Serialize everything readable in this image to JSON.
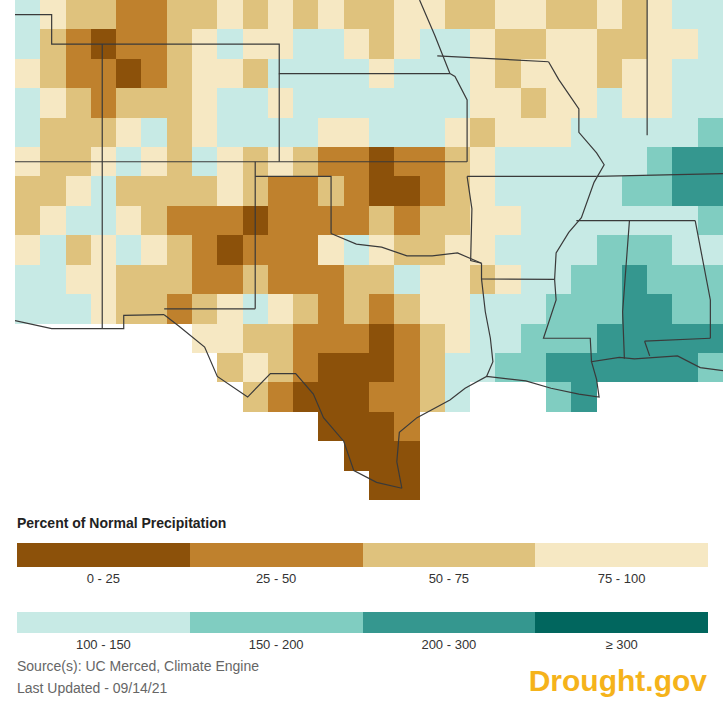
{
  "chart_data": {
    "type": "heatmap",
    "tick_labels": false,
    "xlim": [
      -112.5,
      -84.5
    ],
    "ylim": [
      25.5,
      42.5
    ],
    "x": [
      -112,
      -111,
      -110,
      -109,
      -108,
      -107,
      -106,
      -105,
      -104,
      -103,
      -102,
      -101,
      -100,
      -99,
      -98,
      -97,
      -96,
      -95,
      -94,
      -93,
      -92,
      -91,
      -90,
      -89,
      -88,
      -87,
      -86,
      -85
    ],
    "y": [
      26,
      27,
      28,
      29,
      30,
      31,
      32,
      33,
      34,
      35,
      36,
      37,
      38,
      39,
      40,
      41,
      42
    ],
    "cells": [
      [
        null,
        null,
        null,
        null,
        null,
        null,
        null,
        null,
        null,
        null,
        null,
        null,
        null,
        null,
        15,
        10,
        null,
        null,
        null,
        null,
        null,
        null,
        null,
        null,
        null,
        null,
        null,
        null
      ],
      [
        null,
        null,
        null,
        null,
        null,
        null,
        null,
        null,
        null,
        null,
        null,
        null,
        null,
        15,
        10,
        20,
        null,
        null,
        null,
        null,
        null,
        null,
        null,
        null,
        null,
        null,
        null,
        null
      ],
      [
        null,
        null,
        null,
        null,
        null,
        null,
        null,
        null,
        null,
        null,
        null,
        null,
        20,
        15,
        10,
        40,
        null,
        null,
        null,
        null,
        null,
        null,
        null,
        null,
        null,
        null,
        null,
        null
      ],
      [
        null,
        null,
        null,
        null,
        null,
        null,
        null,
        null,
        null,
        60,
        40,
        20,
        15,
        15,
        25,
        40,
        60,
        130,
        null,
        null,
        null,
        170,
        220,
        null,
        null,
        null,
        null,
        null
      ],
      [
        null,
        null,
        null,
        null,
        null,
        null,
        null,
        null,
        70,
        80,
        50,
        30,
        20,
        15,
        20,
        30,
        60,
        110,
        130,
        150,
        170,
        200,
        220,
        200,
        230,
        250,
        220,
        180
      ],
      [
        null,
        null,
        null,
        null,
        null,
        null,
        null,
        80,
        90,
        60,
        70,
        40,
        40,
        30,
        20,
        30,
        60,
        90,
        110,
        130,
        150,
        180,
        170,
        200,
        220,
        240,
        220,
        200
      ],
      [
        120,
        110,
        130,
        90,
        70,
        60,
        40,
        60,
        80,
        110,
        90,
        60,
        40,
        50,
        40,
        50,
        80,
        90,
        100,
        110,
        120,
        150,
        170,
        180,
        200,
        230,
        180,
        150
      ],
      [
        110,
        120,
        90,
        80,
        60,
        70,
        50,
        40,
        40,
        50,
        30,
        40,
        30,
        60,
        70,
        110,
        90,
        80,
        70,
        90,
        110,
        130,
        160,
        180,
        200,
        170,
        160,
        150
      ],
      [
        80,
        110,
        70,
        90,
        120,
        80,
        60,
        30,
        20,
        30,
        40,
        40,
        80,
        110,
        90,
        70,
        60,
        80,
        90,
        100,
        110,
        120,
        140,
        150,
        170,
        160,
        140,
        130
      ],
      [
        60,
        90,
        100,
        110,
        80,
        60,
        40,
        30,
        40,
        20,
        30,
        40,
        30,
        40,
        50,
        40,
        60,
        70,
        80,
        90,
        100,
        110,
        120,
        110,
        140,
        120,
        130,
        170
      ],
      [
        70,
        50,
        80,
        100,
        60,
        50,
        70,
        60,
        80,
        50,
        30,
        40,
        50,
        40,
        20,
        20,
        30,
        50,
        80,
        100,
        110,
        120,
        110,
        130,
        150,
        170,
        200,
        230
      ],
      [
        90,
        60,
        70,
        90,
        110,
        80,
        60,
        100,
        80,
        60,
        80,
        60,
        40,
        30,
        20,
        30,
        40,
        60,
        90,
        100,
        120,
        110,
        100,
        120,
        130,
        180,
        220,
        200
      ],
      [
        110,
        70,
        50,
        60,
        80,
        100,
        70,
        90,
        110,
        100,
        120,
        110,
        90,
        80,
        110,
        120,
        100,
        80,
        70,
        80,
        90,
        80,
        100,
        110,
        120,
        100,
        140,
        180
      ],
      [
        100,
        80,
        60,
        40,
        50,
        70,
        60,
        80,
        110,
        120,
        90,
        100,
        120,
        130,
        110,
        100,
        120,
        110,
        90,
        80,
        70,
        80,
        90,
        100,
        80,
        90,
        110,
        120
      ],
      [
        90,
        70,
        40,
        30,
        20,
        30,
        50,
        80,
        90,
        70,
        110,
        100,
        130,
        110,
        90,
        110,
        130,
        100,
        90,
        70,
        80,
        90,
        80,
        70,
        90,
        80,
        100,
        110
      ],
      [
        110,
        60,
        40,
        20,
        30,
        40,
        60,
        90,
        100,
        80,
        90,
        110,
        100,
        80,
        70,
        90,
        110,
        100,
        80,
        60,
        70,
        80,
        90,
        70,
        60,
        80,
        90,
        100
      ],
      [
        130,
        90,
        60,
        50,
        40,
        30,
        50,
        70,
        80,
        60,
        80,
        70,
        90,
        60,
        50,
        80,
        90,
        70,
        60,
        80,
        90,
        70,
        60,
        80,
        70,
        90,
        100,
        120
      ]
    ],
    "color_scale": {
      "title": "Percent of Normal Precipitation",
      "bins": [
        0,
        25,
        50,
        75,
        100,
        150,
        200,
        300
      ],
      "labels": [
        "0 - 25",
        "25 - 50",
        "50 - 75",
        "75 - 100",
        "100 - 150",
        "150 - 200",
        "200 - 300",
        "≥ 300"
      ],
      "colors": [
        "#8c510a",
        "#bf812d",
        "#dfc27d",
        "#f6e8c3",
        "#c7eae5",
        "#80cdc1",
        "#35978f",
        "#01665e"
      ]
    },
    "source_text": "Source(s): UC Merced, Climate Engine",
    "updated_text": "Last Updated - 09/14/21",
    "logo_text": "Drought.gov"
  }
}
